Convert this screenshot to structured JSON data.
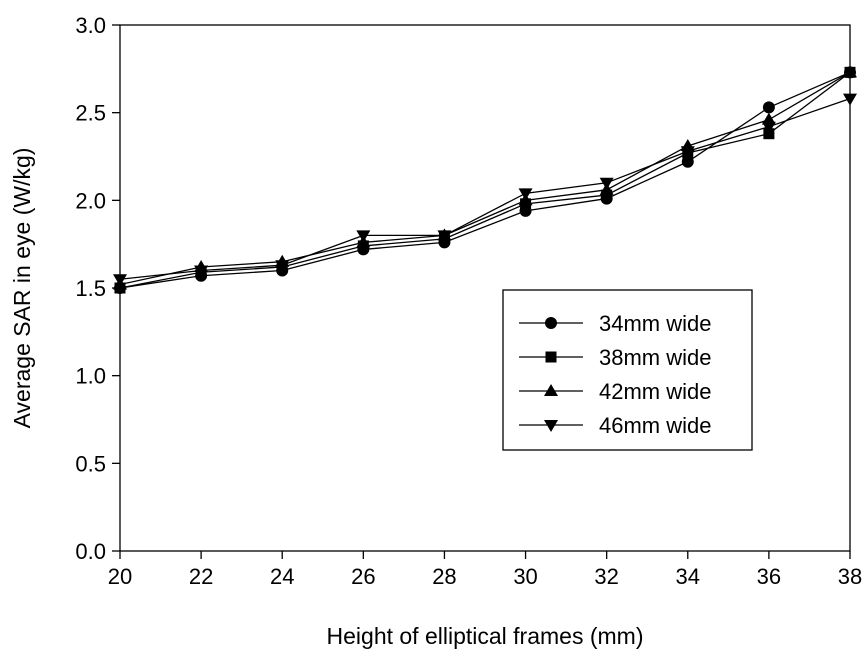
{
  "chart_data": {
    "type": "line",
    "title": "",
    "xlabel": "Height of elliptical frames (mm)",
    "ylabel": "Average SAR in eye (W/kg)",
    "xlim": [
      20,
      38
    ],
    "ylim": [
      0.0,
      3.0
    ],
    "x_ticks": [
      "20",
      "22",
      "24",
      "26",
      "28",
      "30",
      "32",
      "34",
      "36",
      "38"
    ],
    "y_ticks": [
      "0.0",
      "0.5",
      "1.0",
      "1.5",
      "2.0",
      "2.5",
      "3.0"
    ],
    "grid": false,
    "legend_position": "center-right",
    "x": [
      20,
      22,
      24,
      26,
      28,
      30,
      32,
      34,
      36,
      38
    ],
    "series": [
      {
        "name": "34mm wide",
        "marker": "circle",
        "values": [
          1.5,
          1.57,
          1.6,
          1.72,
          1.76,
          1.94,
          2.01,
          2.22,
          2.53,
          2.73
        ]
      },
      {
        "name": "38mm wide",
        "marker": "square",
        "values": [
          1.5,
          1.59,
          1.62,
          1.74,
          1.78,
          1.98,
          2.03,
          2.27,
          2.38,
          2.73
        ]
      },
      {
        "name": "42mm wide",
        "marker": "triangle-up",
        "values": [
          1.52,
          1.62,
          1.65,
          1.76,
          1.8,
          2.0,
          2.06,
          2.31,
          2.46,
          2.73
        ]
      },
      {
        "name": "46mm wide",
        "marker": "triangle-down",
        "values": [
          1.55,
          1.6,
          1.63,
          1.8,
          1.8,
          2.04,
          2.1,
          2.28,
          2.42,
          2.58
        ]
      }
    ],
    "colors": {
      "line": "#000000",
      "marker": "#000000",
      "axis": "#000000"
    }
  }
}
